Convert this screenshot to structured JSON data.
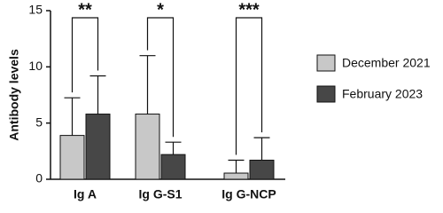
{
  "chart_data": {
    "type": "bar",
    "y_label": "Antibody levels",
    "categories": [
      "Ig A",
      "Ig G-S1",
      "Ig G-NCP"
    ],
    "series": [
      {
        "name": "December 2021",
        "color": "#c8c8c8",
        "values": [
          3.9,
          5.8,
          0.55
        ],
        "errors": [
          3.35,
          5.2,
          1.15
        ]
      },
      {
        "name": "February 2023",
        "color": "#474747",
        "values": [
          5.8,
          2.2,
          1.7
        ],
        "errors": [
          3.4,
          1.1,
          2.0
        ]
      }
    ],
    "significance": [
      "**",
      "*",
      "***"
    ],
    "ylim": [
      0,
      15
    ],
    "yticks": [
      0,
      5,
      10,
      15
    ],
    "legend": "right"
  }
}
